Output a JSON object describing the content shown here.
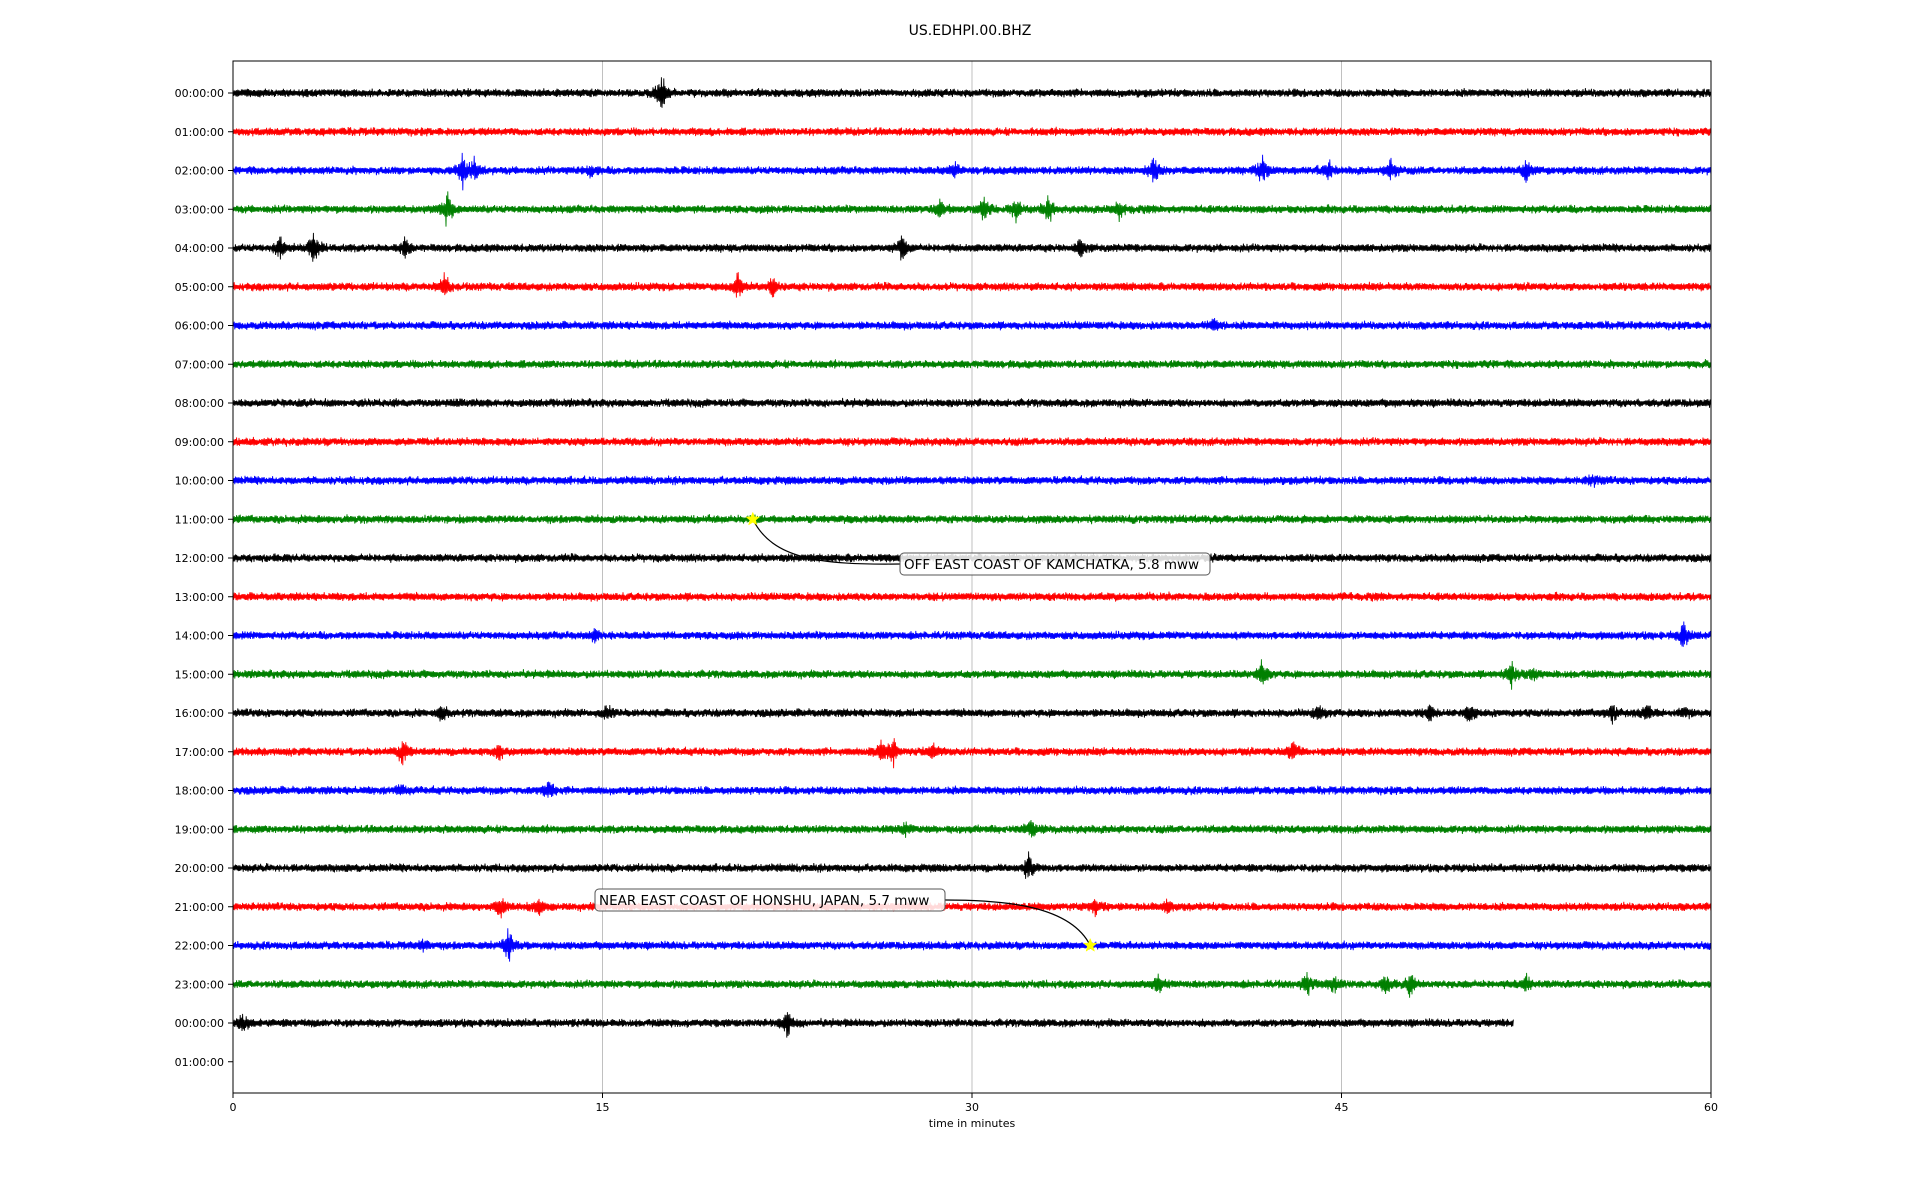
{
  "chart_data": {
    "type": "line",
    "title": "US.EDHPI.00.BHZ",
    "xlabel": "time in minutes",
    "ylabel": "",
    "xlim": [
      0,
      60
    ],
    "x_ticks": [
      "0",
      "15",
      "30",
      "45",
      "60"
    ],
    "x_tick_values": [
      0,
      15,
      30,
      45,
      60
    ],
    "grid": "vertical",
    "trace_colors": [
      "#000000",
      "#ff0000",
      "#0000ff",
      "#008000"
    ],
    "row_labels": [
      "00:00:00",
      "01:00:00",
      "02:00:00",
      "03:00:00",
      "04:00:00",
      "05:00:00",
      "06:00:00",
      "07:00:00",
      "08:00:00",
      "09:00:00",
      "10:00:00",
      "11:00:00",
      "12:00:00",
      "13:00:00",
      "14:00:00",
      "15:00:00",
      "16:00:00",
      "17:00:00",
      "18:00:00",
      "19:00:00",
      "20:00:00",
      "21:00:00",
      "22:00:00",
      "23:00:00",
      "00:00:00",
      "01:00:00"
    ],
    "trace_rows": 25,
    "last_trace_end_minute": 52,
    "events": [
      {
        "label": "OFF EAST COAST OF KAMCHATKA, 5.8 mww",
        "row": 11,
        "minute": 21.1,
        "marker_color": "#ffff00"
      },
      {
        "label": "NEAR EAST COAST OF HONSHU, JAPAN, 5.7 mww",
        "row": 22,
        "minute": 34.8,
        "marker_color": "#ffff00"
      }
    ],
    "bursts": [
      [
        [
          17.4,
          3.0
        ]
      ],
      [],
      [
        [
          9.3,
          2.6
        ],
        [
          9.8,
          1.4
        ],
        [
          14.5,
          1.0
        ],
        [
          29.3,
          1.0
        ],
        [
          37.4,
          1.8
        ],
        [
          41.8,
          2.0
        ],
        [
          44.5,
          1.5
        ],
        [
          47.0,
          1.7
        ],
        [
          52.5,
          1.5
        ]
      ],
      [
        [
          8.7,
          2.8
        ],
        [
          28.7,
          1.2
        ],
        [
          30.5,
          1.6
        ],
        [
          31.8,
          1.5
        ],
        [
          33.1,
          2.0
        ],
        [
          36.0,
          1.3
        ]
      ],
      [
        [
          1.9,
          1.6
        ],
        [
          3.3,
          2.4
        ],
        [
          7.0,
          1.3
        ],
        [
          27.2,
          1.7
        ],
        [
          34.4,
          1.2
        ]
      ],
      [
        [
          8.6,
          1.7
        ],
        [
          20.5,
          2.0
        ],
        [
          21.9,
          1.5
        ]
      ],
      [
        [
          39.8,
          1.0
        ]
      ],
      [],
      [],
      [],
      [
        [
          55.2,
          0.8
        ]
      ],
      [],
      [],
      [],
      [
        [
          58.9,
          2.2
        ],
        [
          14.7,
          0.8
        ]
      ],
      [
        [
          41.8,
          1.9
        ],
        [
          51.9,
          1.7
        ],
        [
          52.8,
          1.0
        ]
      ],
      [
        [
          8.5,
          1.2
        ],
        [
          15.2,
          1.2
        ],
        [
          44.1,
          1.2
        ],
        [
          48.6,
          1.5
        ],
        [
          50.2,
          1.1
        ],
        [
          56.0,
          1.1
        ],
        [
          57.4,
          1.3
        ],
        [
          59.0,
          0.8
        ]
      ],
      [
        [
          6.9,
          1.8
        ],
        [
          10.8,
          1.1
        ],
        [
          26.3,
          1.4
        ],
        [
          26.8,
          1.8
        ],
        [
          28.4,
          1.1
        ],
        [
          43.0,
          1.6
        ]
      ],
      [
        [
          12.8,
          1.2
        ],
        [
          6.8,
          0.9
        ]
      ],
      [
        [
          32.4,
          1.4
        ],
        [
          27.3,
          0.8
        ]
      ],
      [
        [
          32.3,
          1.8
        ]
      ],
      [
        [
          10.9,
          1.4
        ],
        [
          12.4,
          1.2
        ],
        [
          38.0,
          1.0
        ],
        [
          35.0,
          1.0
        ]
      ],
      [
        [
          11.2,
          2.4
        ],
        [
          7.7,
          0.8
        ]
      ],
      [
        [
          37.6,
          1.2
        ],
        [
          43.6,
          1.4
        ],
        [
          44.7,
          1.2
        ],
        [
          46.8,
          1.3
        ],
        [
          47.8,
          1.6
        ],
        [
          52.5,
          1.3
        ]
      ],
      [
        [
          0.4,
          1.4
        ],
        [
          22.5,
          1.6
        ]
      ]
    ]
  }
}
